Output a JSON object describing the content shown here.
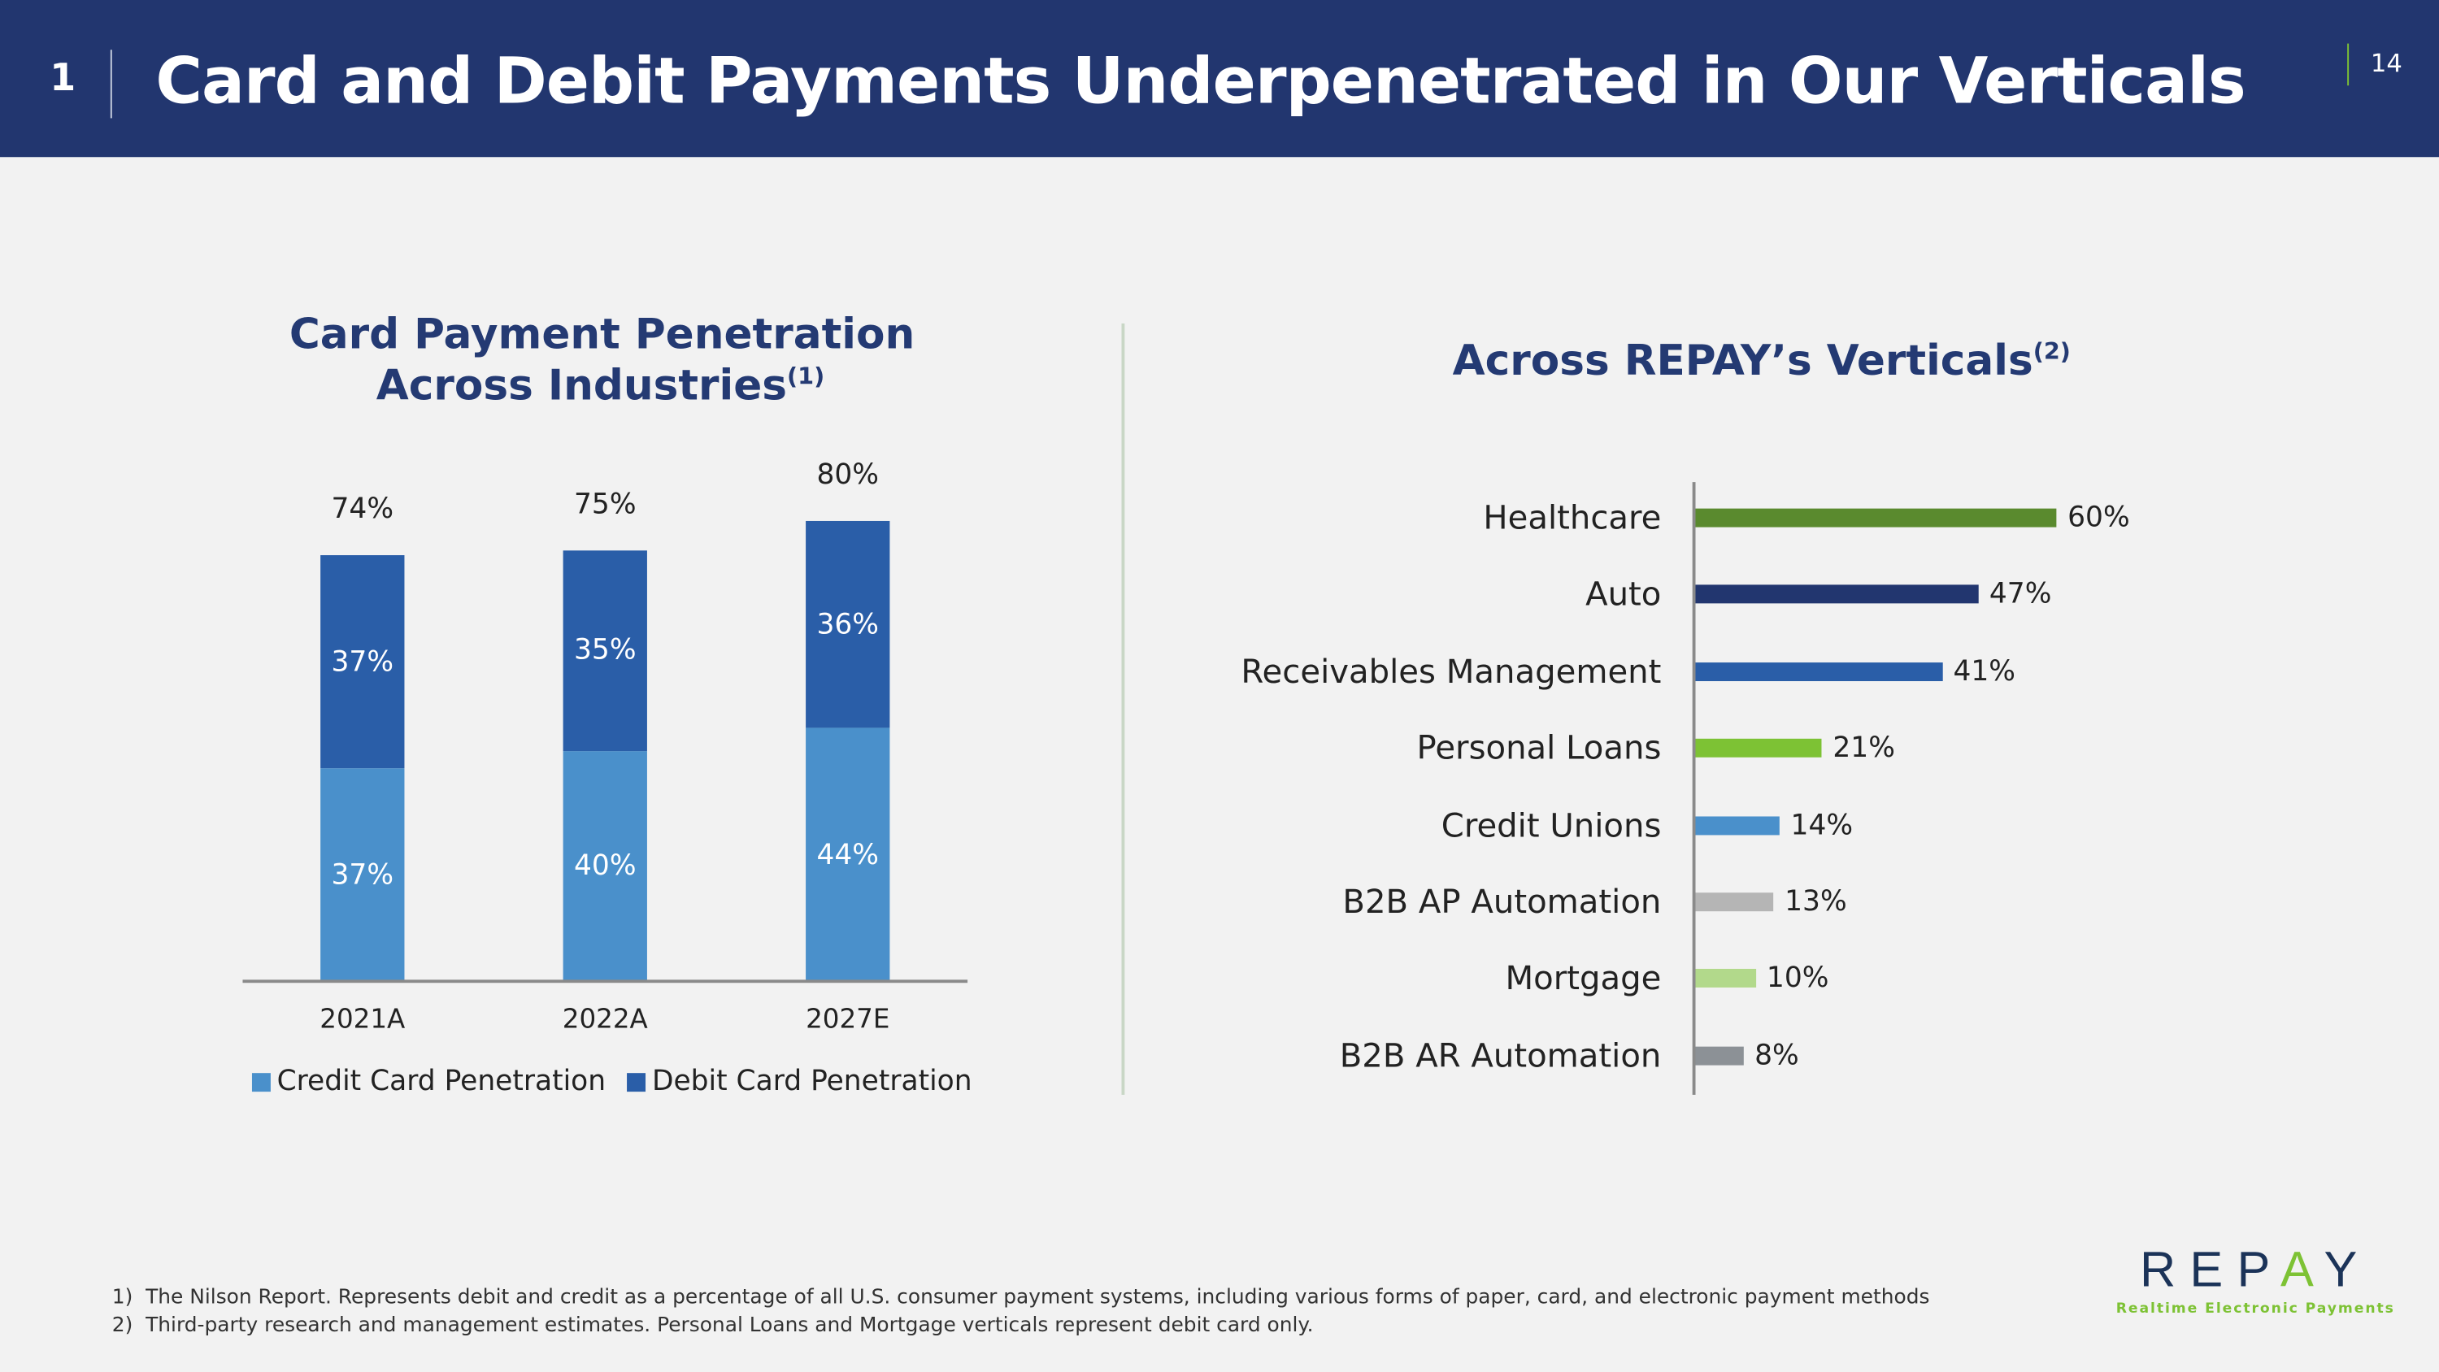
{
  "header": {
    "section_number": "1",
    "title": "Card and Debit Payments Underpenetrated in Our Verticals",
    "page_number": "14"
  },
  "left_chart_title": {
    "line1": "Card Payment Penetration",
    "line2": "Across Industries",
    "footnote_ref": "(1)"
  },
  "right_chart_title": {
    "text": "Across REPAY’s Verticals",
    "footnote_ref": "(2)"
  },
  "chart_data": [
    {
      "type": "bar",
      "stacked": true,
      "categories": [
        "2021A",
        "2022A",
        "2027E"
      ],
      "series": [
        {
          "name": "Credit Card Penetration",
          "values": [
            37,
            40,
            44
          ],
          "labels": [
            "37%",
            "40%",
            "44%"
          ],
          "color": "#4a90cb"
        },
        {
          "name": "Debit Card Penetration",
          "values": [
            37,
            35,
            36
          ],
          "labels": [
            "37%",
            "35%",
            "36%"
          ],
          "color": "#2a5ea8"
        }
      ],
      "totals": [
        "74%",
        "75%",
        "80%"
      ],
      "total_values": [
        74,
        75,
        80
      ],
      "legend": "bottom"
    },
    {
      "type": "bar",
      "orientation": "horizontal",
      "categories": [
        "Healthcare",
        "Auto",
        "Receivables Management",
        "Personal Loans",
        "Credit Unions",
        "B2B AP Automation",
        "Mortgage",
        "B2B AR Automation"
      ],
      "values": [
        60,
        47,
        41,
        21,
        14,
        13,
        10,
        8
      ],
      "labels": [
        "60%",
        "47%",
        "41%",
        "21%",
        "14%",
        "13%",
        "10%",
        "8%"
      ],
      "colors": [
        "#5a8a2e",
        "#22366f",
        "#2a5ea8",
        "#7dc234",
        "#4a90cb",
        "#b5b5b5",
        "#b2d98b",
        "#8c9196"
      ]
    }
  ],
  "footnotes": [
    {
      "num": "1)",
      "text": "The Nilson Report. Represents debit and credit as a percentage of all U.S. consumer payment systems, including various forms of paper, card, and electronic payment methods"
    },
    {
      "num": "2)",
      "text": "Third-party research and management estimates. Personal Loans and Mortgage verticals represent debit card only."
    }
  ],
  "logo": {
    "name": "REPAY",
    "tagline": "Realtime Electronic Payments"
  }
}
